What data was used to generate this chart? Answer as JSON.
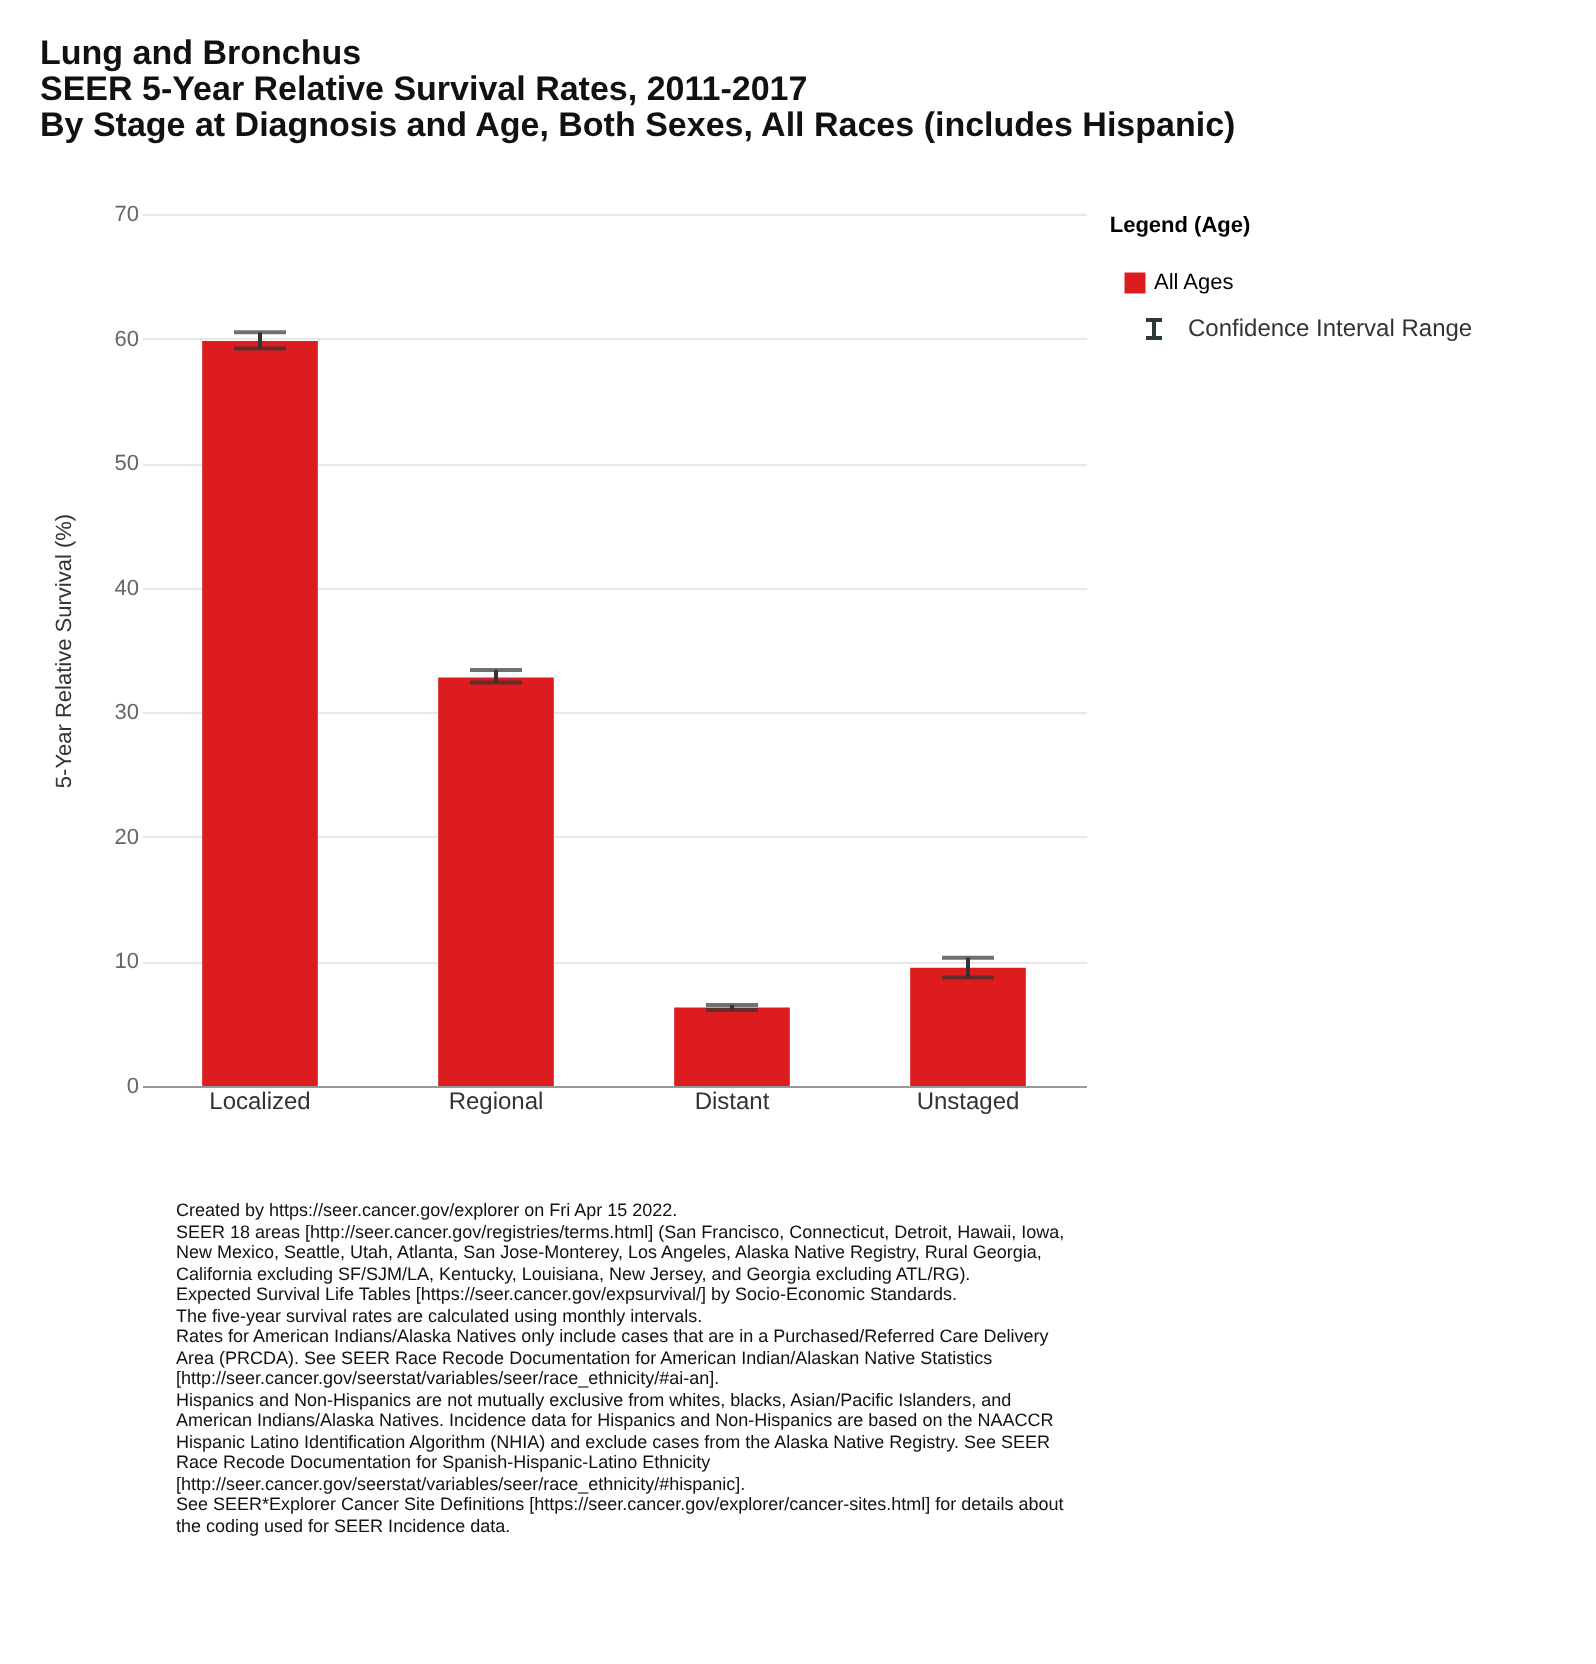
{
  "chart_data": {
    "type": "bar",
    "title": "Lung and Bronchus",
    "subtitle": "SEER 5-Year Relative Survival Rates, 2011-2017\nBy Stage at Diagnosis and Age, Both Sexes, All Races (includes Hispanic)",
    "ylabel": "5-Year Relative Survival (%)",
    "legend_title": "Legend (Age)",
    "categories": [
      "Localized",
      "Regional",
      "Distant",
      "Unstaged"
    ],
    "series": [
      {
        "name": "All Ages",
        "color": "#dd1c1f",
        "values": [
          59.8,
          32.8,
          6.3,
          9.5
        ],
        "errors": [
          [
            59.2,
            60.5
          ],
          [
            32.4,
            33.4
          ],
          [
            6.1,
            6.5
          ],
          [
            8.7,
            10.3
          ]
        ]
      }
    ],
    "ylim": [
      0,
      70
    ],
    "yticks": [
      0,
      10,
      20,
      30,
      40,
      50,
      60,
      70
    ],
    "grid": "y",
    "legend": "top right",
    "annotations": [
      "Confidence Interval Range",
      "Created by https://seer.cancer.gov/explorer on Fri Apr 15 2022.",
      "SEER 18 areas [http://seer.cancer.gov/registries/terms.html] (San Francisco, Connecticut, Detroit, Hawaii, Iowa, New Mexico, Seattle, Utah, Atlanta, San Jose-Monterey, Los Angeles, Alaska Native Registry, Rural Georgia, California excluding SF/SJM/LA, Kentucky, Louisiana, New Jersey, and Georgia excluding ATL/RG).",
      "Expected Survival Life Tables [https://seer.cancer.gov/expsurvival/] by Socio-Economic Standards.",
      "The five-year survival rates are calculated using monthly intervals.",
      "Rates for American Indians/Alaska Natives only include cases that are in a Purchased/Referred Care Delivery Area (PRCDA). See  SEER Race Recode Documentation for American Indian/Alaskan Native Statistics [http://seer.cancer.gov/seerstat/variables/seer/race_ethnicity/#ai-an].",
      "Hispanics and Non-Hispanics are not mutually exclusive from whites, blacks, Asian/Pacific Islanders, and American Indians/Alaska Natives. Incidence data for Hispanics and Non-Hispanics are based on the NAACCR Hispanic Latino Identification Algorithm (NHIA) and exclude cases from the Alaska Native Registry. See SEER Race Recode Documentation for Spanish-Hispanic-Latino Ethnicity [http://seer.cancer.gov/seerstat/variables/seer/race_ethnicity/#hispanic].",
      "See SEER*Explorer Cancer Site Definitions [https://seer.cancer.gov/explorer/cancer-sites.html] for details about the coding used for SEER Incidence data."
    ]
  }
}
